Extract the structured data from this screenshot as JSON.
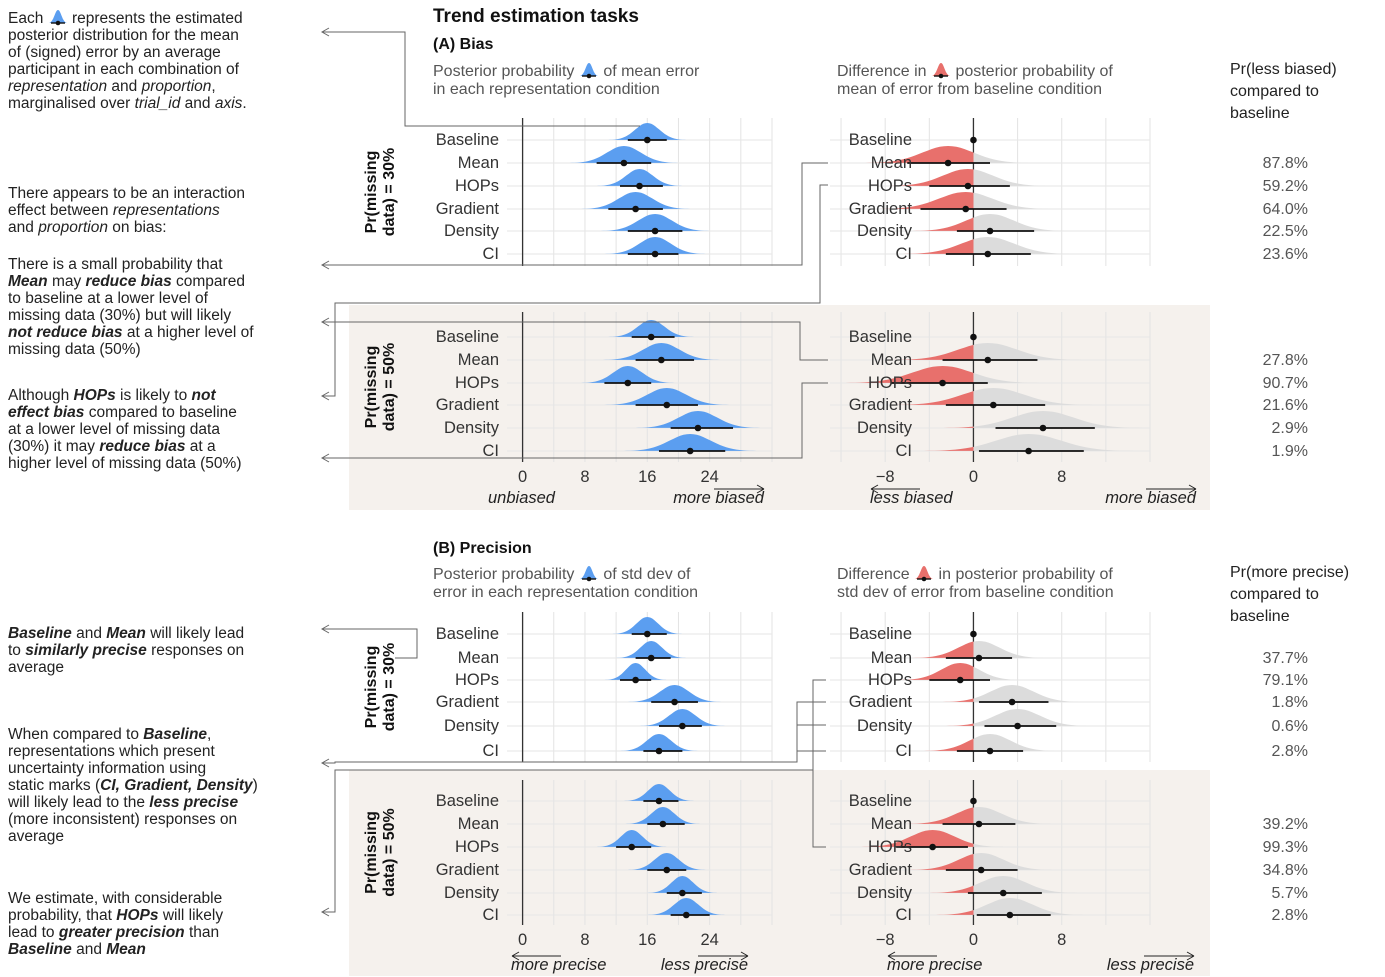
{
  "figure": {
    "title": "Trend estimation tasks",
    "panel_a": {
      "heading": "(A) Bias",
      "left_sub_1": "Posterior probability",
      "left_sub_2": "of mean error",
      "left_sub_3": "in each representation condition",
      "right_sub_1": "Difference in",
      "right_sub_2": "posterior probability of",
      "right_sub_3": "mean of error from baseline condition",
      "prob_header": [
        "Pr(less biased)",
        "compared to",
        "baseline"
      ],
      "left_axis_left": "unbiased",
      "left_axis_right": "more biased",
      "right_axis_left": "less biased",
      "right_axis_right": "more biased"
    },
    "panel_b": {
      "heading": "(B) Precision",
      "left_sub_1": "Posterior probability",
      "left_sub_2": "of std dev of",
      "left_sub_3": "error in each representation condition",
      "right_sub_1": "Difference",
      "right_sub_2": "in posterior probability of",
      "right_sub_3": "std dev of error from baseline condition",
      "prob_header": [
        "Pr(more precise)",
        "compared to",
        "baseline"
      ],
      "left_axis_left": "more precise",
      "left_axis_right": "less precise",
      "right_axis_left": "more precise",
      "right_axis_right": "less precise"
    },
    "facet_30": "Pr(missing",
    "facet_30b": "data) = 30%",
    "facet_50": "Pr(missing",
    "facet_50b": "data) = 50%",
    "colors": {
      "blue": "#5b9ef0",
      "red": "#e8706c",
      "grey": "#dcdcdc",
      "band": "#f5f1ed"
    }
  },
  "annotations": {
    "a1": [
      "Each",
      "represents the estimated",
      "posterior distribution for the mean",
      "of (signed) error by an average",
      "participant in each combination of",
      "representation",
      "and",
      "proportion",
      ",",
      "marginalised over",
      "trial_id",
      "and",
      "axis",
      "."
    ],
    "a2": [
      "There appears to be an interaction",
      "effect between",
      "representations",
      "and",
      "proportion",
      "on bias:"
    ],
    "a3": [
      "There is a small probability that",
      "Mean",
      "may",
      "reduce bias",
      "compared",
      "to baseline at a lower level of",
      "missing data (30%) but will likely",
      "not reduce bias",
      "at a higher level of",
      "missing data (50%)"
    ],
    "a4": [
      "Although",
      "HOPs",
      "is likely to",
      "not",
      "effect bias",
      "compared to baseline",
      "at a lower level of missing data",
      "(30%) it may",
      "reduce bias",
      "at a",
      "higher level of missing data (50%)"
    ],
    "b1": [
      "Baseline",
      "and",
      "Mean",
      "will likely lead",
      "to",
      "similarly precise",
      "responses on",
      "average"
    ],
    "b2": [
      "When compared to",
      "Baseline",
      ",",
      "representations which present",
      "uncertainty information using",
      "static marks (",
      "CI, Gradient, Density",
      ")",
      "will likely lead to the",
      "less precise",
      "(more inconsistent) responses on",
      "average"
    ],
    "b3": [
      "We estimate, with considerable",
      "probability, that",
      "HOPs",
      "will likely",
      "lead to",
      "greater precision",
      "than",
      "Baseline",
      "and",
      "Mean"
    ]
  },
  "chart_data": [
    {
      "type": "interval-density",
      "panel": "A",
      "facet": "Pr(missing data) = 30%",
      "side": "left",
      "categories": [
        "Baseline",
        "Mean",
        "HOPs",
        "Gradient",
        "Density",
        "CI"
      ],
      "point": [
        16,
        13,
        15,
        14.5,
        17,
        17
      ],
      "interval": [
        [
          13.5,
          18.5
        ],
        [
          9.5,
          16.5
        ],
        [
          12.5,
          18
        ],
        [
          11,
          18
        ],
        [
          13.5,
          20.5
        ],
        [
          13.5,
          20
        ]
      ],
      "xlim": [
        -2,
        32
      ],
      "xticks": [
        0,
        8,
        16,
        24
      ]
    },
    {
      "type": "interval-density",
      "panel": "A",
      "facet": "Pr(missing data) = 30%",
      "side": "right",
      "categories": [
        "Baseline",
        "Mean",
        "HOPs",
        "Gradient",
        "Density",
        "CI"
      ],
      "point": [
        0,
        -2.3,
        -0.5,
        -0.7,
        1.5,
        1.3
      ],
      "interval": [
        [
          0,
          0
        ],
        [
          -6,
          1.5
        ],
        [
          -4,
          3.3
        ],
        [
          -4.8,
          3
        ],
        [
          -1.5,
          5.5
        ],
        [
          -2.5,
          5.2
        ]
      ],
      "prob": [
        "",
        "87.8%",
        "59.2%",
        "64.0%",
        "22.5%",
        "23.6%"
      ],
      "xlim": [
        -13,
        16
      ],
      "xticks": [
        -8,
        0,
        8
      ]
    },
    {
      "type": "interval-density",
      "panel": "A",
      "facet": "Pr(missing data) = 50%",
      "side": "left",
      "categories": [
        "Baseline",
        "Mean",
        "HOPs",
        "Gradient",
        "Density",
        "CI"
      ],
      "point": [
        16.5,
        17.8,
        13.5,
        18.5,
        22.5,
        21.5
      ],
      "interval": [
        [
          14,
          19.5
        ],
        [
          14.5,
          22
        ],
        [
          10.5,
          16.5
        ],
        [
          14.5,
          22.5
        ],
        [
          19,
          27
        ],
        [
          17.5,
          26
        ]
      ],
      "xlim": [
        -2,
        32
      ],
      "xticks": [
        0,
        8,
        16,
        24
      ]
    },
    {
      "type": "interval-density",
      "panel": "A",
      "facet": "Pr(missing data) = 50%",
      "side": "right",
      "categories": [
        "Baseline",
        "Mean",
        "HOPs",
        "Gradient",
        "Density",
        "CI"
      ],
      "point": [
        0,
        1.3,
        -2.8,
        1.8,
        6.3,
        5
      ],
      "interval": [
        [
          0,
          0
        ],
        [
          -2.8,
          5.8
        ],
        [
          -7.5,
          1.3
        ],
        [
          -2.5,
          6.5
        ],
        [
          2,
          11
        ],
        [
          0.5,
          10
        ]
      ],
      "prob": [
        "",
        "27.8%",
        "90.7%",
        "21.6%",
        "2.9%",
        "1.9%"
      ],
      "xlim": [
        -13,
        16
      ],
      "xticks": [
        -8,
        0,
        8
      ]
    },
    {
      "type": "interval-density",
      "panel": "B",
      "facet": "Pr(missing data) = 30%",
      "side": "left",
      "categories": [
        "Baseline",
        "Mean",
        "HOPs",
        "Gradient",
        "Density",
        "CI"
      ],
      "point": [
        16,
        16.5,
        14.5,
        19.5,
        20.5,
        17.5
      ],
      "interval": [
        [
          14,
          18.5
        ],
        [
          14.5,
          19
        ],
        [
          12.5,
          16.5
        ],
        [
          16.5,
          22.5
        ],
        [
          17.5,
          23
        ],
        [
          15.5,
          20.5
        ]
      ],
      "xlim": [
        -2,
        32
      ],
      "xticks": [
        0,
        8,
        16,
        24
      ]
    },
    {
      "type": "interval-density",
      "panel": "B",
      "facet": "Pr(missing data) = 30%",
      "side": "right",
      "categories": [
        "Baseline",
        "Mean",
        "HOPs",
        "Gradient",
        "Density",
        "CI"
      ],
      "point": [
        0,
        0.5,
        -1.2,
        3.5,
        4,
        1.5
      ],
      "interval": [
        [
          0,
          0
        ],
        [
          -2.5,
          3.5
        ],
        [
          -4,
          1.5
        ],
        [
          0.5,
          6.8
        ],
        [
          1,
          7.5
        ],
        [
          -1.5,
          4.5
        ]
      ],
      "prob": [
        "",
        "37.7%",
        "79.1%",
        "1.8%",
        "0.6%",
        "2.8%"
      ],
      "xlim": [
        -13,
        16
      ],
      "xticks": [
        -8,
        0,
        8
      ]
    },
    {
      "type": "interval-density",
      "panel": "B",
      "facet": "Pr(missing data) = 50%",
      "side": "left",
      "categories": [
        "Baseline",
        "Mean",
        "HOPs",
        "Gradient",
        "Density",
        "CI"
      ],
      "point": [
        17.5,
        18,
        14,
        18.5,
        20.5,
        21
      ],
      "interval": [
        [
          15.5,
          20
        ],
        [
          16,
          20.8
        ],
        [
          12,
          16.5
        ],
        [
          16,
          21
        ],
        [
          18.5,
          23
        ],
        [
          19,
          24
        ]
      ],
      "xlim": [
        -2,
        32
      ],
      "xticks": [
        0,
        8,
        16,
        24
      ]
    },
    {
      "type": "interval-density",
      "panel": "B",
      "facet": "Pr(missing data) = 50%",
      "side": "right",
      "categories": [
        "Baseline",
        "Mean",
        "HOPs",
        "Gradient",
        "Density",
        "CI"
      ],
      "point": [
        0,
        0.5,
        -3.7,
        0.7,
        2.7,
        3.3
      ],
      "interval": [
        [
          0,
          0
        ],
        [
          -2.8,
          3.8
        ],
        [
          -7,
          -0.5
        ],
        [
          -2.5,
          4
        ],
        [
          -0.5,
          6.2
        ],
        [
          0.3,
          7
        ]
      ],
      "prob": [
        "",
        "39.2%",
        "99.3%",
        "34.8%",
        "5.7%",
        "2.8%"
      ],
      "xlim": [
        -13,
        16
      ],
      "xticks": [
        -8,
        0,
        8
      ]
    }
  ]
}
